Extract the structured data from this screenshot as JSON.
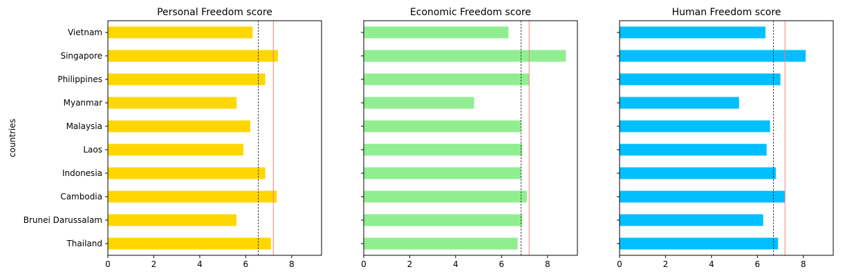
{
  "chart_data": [
    {
      "type": "bar",
      "orientation": "horizontal",
      "title": "Personal Freedom score",
      "ylabel": "countries",
      "xlabel": "",
      "categories": [
        "Thailand",
        "Brunei Darussalam",
        "Cambodia",
        "Indonesia",
        "Laos",
        "Malaysia",
        "Myanmar",
        "Philippines",
        "Singapore",
        "Vietnam"
      ],
      "values": [
        7.1,
        5.6,
        7.35,
        6.85,
        5.9,
        6.2,
        5.6,
        6.85,
        7.4,
        6.3
      ],
      "color": "#ffd700",
      "xlim": [
        0,
        9.3
      ],
      "xticks": [
        0,
        2,
        4,
        6,
        8
      ],
      "reference_lines": [
        {
          "value": 6.55,
          "color": "#000000",
          "style": "dashed"
        },
        {
          "value": 7.2,
          "color": "#f08080",
          "style": "solid"
        }
      ]
    },
    {
      "type": "bar",
      "orientation": "horizontal",
      "title": "Economic Freedom score",
      "ylabel": "",
      "xlabel": "",
      "categories": [
        "Thailand",
        "Brunei Darussalam",
        "Cambodia",
        "Indonesia",
        "Laos",
        "Malaysia",
        "Myanmar",
        "Philippines",
        "Singapore",
        "Vietnam"
      ],
      "values": [
        6.7,
        6.9,
        7.1,
        6.85,
        6.9,
        6.85,
        4.8,
        7.2,
        8.8,
        6.3
      ],
      "color": "#90ee90",
      "xlim": [
        0,
        9.3
      ],
      "xticks": [
        0,
        2,
        4,
        6,
        8
      ],
      "reference_lines": [
        {
          "value": 6.85,
          "color": "#000000",
          "style": "dashed"
        },
        {
          "value": 7.2,
          "color": "#f08080",
          "style": "solid"
        }
      ]
    },
    {
      "type": "bar",
      "orientation": "horizontal",
      "title": "Human Freedom score",
      "ylabel": "",
      "xlabel": "",
      "categories": [
        "Thailand",
        "Brunei Darussalam",
        "Cambodia",
        "Indonesia",
        "Laos",
        "Malaysia",
        "Myanmar",
        "Philippines",
        "Singapore",
        "Vietnam"
      ],
      "values": [
        6.9,
        6.25,
        7.2,
        6.8,
        6.4,
        6.55,
        5.2,
        7.0,
        8.1,
        6.35
      ],
      "color": "#00bfff",
      "xlim": [
        0,
        9.3
      ],
      "xticks": [
        0,
        2,
        4,
        6,
        8
      ],
      "reference_lines": [
        {
          "value": 6.7,
          "color": "#000000",
          "style": "dashed"
        },
        {
          "value": 7.2,
          "color": "#f08080",
          "style": "solid"
        }
      ]
    }
  ]
}
